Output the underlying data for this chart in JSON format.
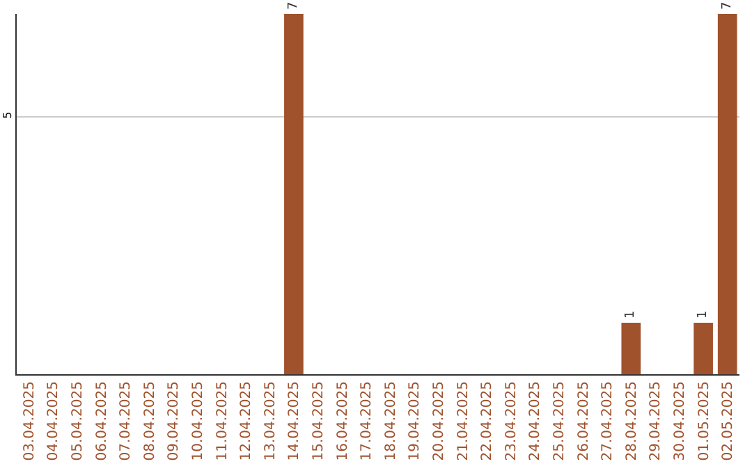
{
  "chart_data": {
    "type": "bar",
    "categories": [
      "03.04.2025",
      "04.04.2025",
      "05.04.2025",
      "06.04.2025",
      "07.04.2025",
      "08.04.2025",
      "09.04.2025",
      "10.04.2025",
      "11.04.2025",
      "12.04.2025",
      "13.04.2025",
      "14.04.2025",
      "15.04.2025",
      "16.04.2025",
      "17.04.2025",
      "18.04.2025",
      "19.04.2025",
      "20.04.2025",
      "21.04.2025",
      "22.04.2025",
      "23.04.2025",
      "24.04.2025",
      "25.04.2025",
      "26.04.2025",
      "27.04.2025",
      "28.04.2025",
      "29.04.2025",
      "30.04.2025",
      "01.05.2025",
      "02.05.2025"
    ],
    "values": [
      0,
      0,
      0,
      0,
      0,
      0,
      0,
      0,
      0,
      0,
      0,
      7,
      0,
      0,
      0,
      0,
      0,
      0,
      0,
      0,
      0,
      0,
      0,
      0,
      0,
      1,
      0,
      0,
      1,
      7
    ],
    "value_labels": [
      null,
      null,
      null,
      null,
      null,
      null,
      null,
      null,
      null,
      null,
      null,
      "7",
      null,
      null,
      null,
      null,
      null,
      null,
      null,
      null,
      null,
      null,
      null,
      null,
      null,
      "1",
      null,
      null,
      "1",
      "7"
    ],
    "color": "#a0522d",
    "ylim": [
      0,
      7
    ],
    "yticks": [
      5
    ],
    "grid": "y"
  }
}
